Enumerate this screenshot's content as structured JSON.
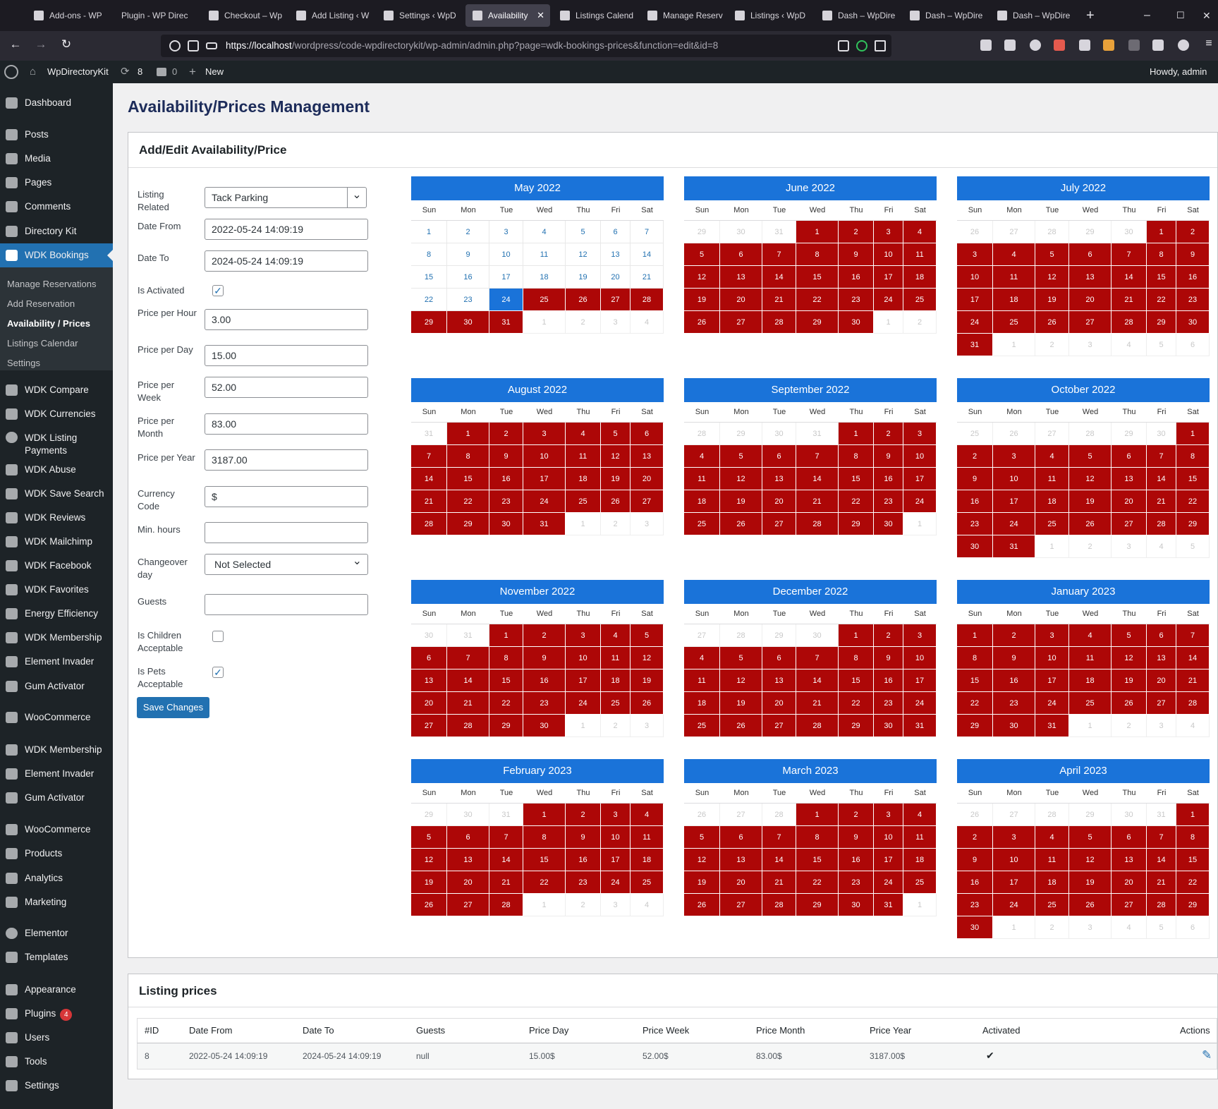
{
  "browser": {
    "tabs": [
      {
        "label": "Add-ons - WP"
      },
      {
        "label": "Plugin - WP Directo"
      },
      {
        "label": "Checkout – Wp"
      },
      {
        "label": "Add Listing ‹ W"
      },
      {
        "label": "Settings ‹ WpD"
      },
      {
        "label": "Availability"
      },
      {
        "label": "Listings Calend"
      },
      {
        "label": "Manage Reserv"
      },
      {
        "label": "Listings ‹ WpD"
      },
      {
        "label": "Dash – WpDire"
      },
      {
        "label": "Dash – WpDire"
      },
      {
        "label": "Dash – WpDire"
      }
    ],
    "new_tab": "+",
    "tab_close": "✕",
    "url_host": "https://localhost",
    "url_path": "/wordpress/code-wpdirectorykit/wp-admin/admin.php?page=wdk-bookings-prices&function=edit&id=8",
    "win_min": "–",
    "win_max": "☐",
    "win_close": "✕"
  },
  "adminbar": {
    "site": "WpDirectoryKit",
    "updates": "8",
    "comments": "0",
    "new": "New",
    "howdy": "Howdy, admin"
  },
  "sidebar": {
    "items": [
      {
        "label": "Dashboard"
      },
      {
        "label": "Posts"
      },
      {
        "label": "Media"
      },
      {
        "label": "Pages"
      },
      {
        "label": "Comments"
      },
      {
        "label": "Directory Kit"
      },
      {
        "label": "WDK Bookings"
      },
      {
        "label": "WDK Compare"
      },
      {
        "label": "WDK Currencies"
      },
      {
        "label": "WDK Listing Payments"
      },
      {
        "label": "WDK Abuse"
      },
      {
        "label": "WDK Save Search"
      },
      {
        "label": "WDK Reviews"
      },
      {
        "label": "WDK Mailchimp"
      },
      {
        "label": "WDK Facebook"
      },
      {
        "label": "WDK Favorites"
      },
      {
        "label": "Energy Efficiency"
      },
      {
        "label": "WDK Membership"
      },
      {
        "label": "Element Invader"
      },
      {
        "label": "Gum Activator"
      },
      {
        "label": "WooCommerce"
      },
      {
        "label": "WDK Membership"
      },
      {
        "label": "Element Invader"
      },
      {
        "label": "Gum Activator"
      },
      {
        "label": "WooCommerce"
      },
      {
        "label": "Products"
      },
      {
        "label": "Analytics"
      },
      {
        "label": "Marketing"
      },
      {
        "label": "Elementor"
      },
      {
        "label": "Templates"
      },
      {
        "label": "Appearance"
      },
      {
        "label": "Plugins"
      },
      {
        "label": "Users"
      },
      {
        "label": "Tools"
      },
      {
        "label": "Settings"
      }
    ],
    "plugins_badge": "4",
    "submenu": [
      {
        "label": "Manage Reservations"
      },
      {
        "label": "Add Reservation"
      },
      {
        "label": "Availability / Prices"
      },
      {
        "label": "Listings Calendar"
      },
      {
        "label": "Settings"
      }
    ]
  },
  "page": {
    "title": "Availability/Prices Management",
    "form_title": "Add/Edit Availability/Price",
    "form": {
      "listing_related_label": "Listing Related",
      "listing_related_value": "Tack Parking",
      "date_from_label": "Date From",
      "date_from_value": "2022-05-24 14:09:19",
      "date_to_label": "Date To",
      "date_to_value": "2024-05-24 14:09:19",
      "is_activated_label": "Is Activated",
      "price_hour_label": "Price per Hour",
      "price_hour_value": "3.00",
      "price_day_label": "Price per Day",
      "price_day_value": "15.00",
      "price_week_label": "Price per Week",
      "price_week_value": "52.00",
      "price_month_label": "Price per Month",
      "price_month_value": "83.00",
      "price_year_label": "Price per Year",
      "price_year_value": "3187.00",
      "currency_label": "Currency Code",
      "currency_value": "$",
      "min_hours_label": "Min. hours",
      "min_hours_value": "",
      "changeover_label": "Changeover day",
      "changeover_value": "Not Selected",
      "guests_label": "Guests",
      "guests_value": "",
      "children_label": "Is Children Acceptable",
      "pets_label": "Is Pets Acceptable",
      "save_label": "Save Changes",
      "check_mark": "✓",
      "chevron": "⌄"
    },
    "calendar": {
      "weekdays": [
        "Sun",
        "Mon",
        "Tue",
        "Wed",
        "Thu",
        "Fri",
        "Sat"
      ],
      "months": [
        {
          "title": "May 2022",
          "first": 0,
          "days": 31,
          "prev_days": 30,
          "available_until": 23,
          "selected": 24
        },
        {
          "title": "June 2022",
          "first": 3,
          "days": 30,
          "prev_days": 31
        },
        {
          "title": "July 2022",
          "first": 5,
          "days": 31,
          "prev_days": 30
        },
        {
          "title": "August 2022",
          "first": 1,
          "days": 31,
          "prev_days": 31
        },
        {
          "title": "September 2022",
          "first": 4,
          "days": 30,
          "prev_days": 31
        },
        {
          "title": "October 2022",
          "first": 6,
          "days": 31,
          "prev_days": 30
        },
        {
          "title": "November 2022",
          "first": 2,
          "days": 30,
          "prev_days": 31
        },
        {
          "title": "December 2022",
          "first": 4,
          "days": 31,
          "prev_days": 30
        },
        {
          "title": "January 2023",
          "first": 0,
          "days": 31,
          "prev_days": 31
        },
        {
          "title": "February 2023",
          "first": 3,
          "days": 28,
          "prev_days": 31
        },
        {
          "title": "March 2023",
          "first": 3,
          "days": 31,
          "prev_days": 28
        },
        {
          "title": "April 2023",
          "first": 6,
          "days": 30,
          "prev_days": 31
        }
      ]
    },
    "prices": {
      "title": "Listing prices",
      "columns": [
        "#ID",
        "Date From",
        "Date To",
        "Guests",
        "Price Day",
        "Price Week",
        "Price Month",
        "Price Year",
        "Activated",
        "Actions"
      ],
      "rows": [
        [
          "8",
          "2022-05-24 14:09:19",
          "2024-05-24 14:09:19",
          "null",
          "15.00$",
          "52.00$",
          "83.00$",
          "3187.00$",
          "✔",
          "✎"
        ]
      ]
    }
  },
  "colors": {
    "booked": "#ad0707",
    "available": "#2271b1",
    "header": "#1a73d9",
    "admin_dark": "#1d2327",
    "button": "#2271b1"
  }
}
